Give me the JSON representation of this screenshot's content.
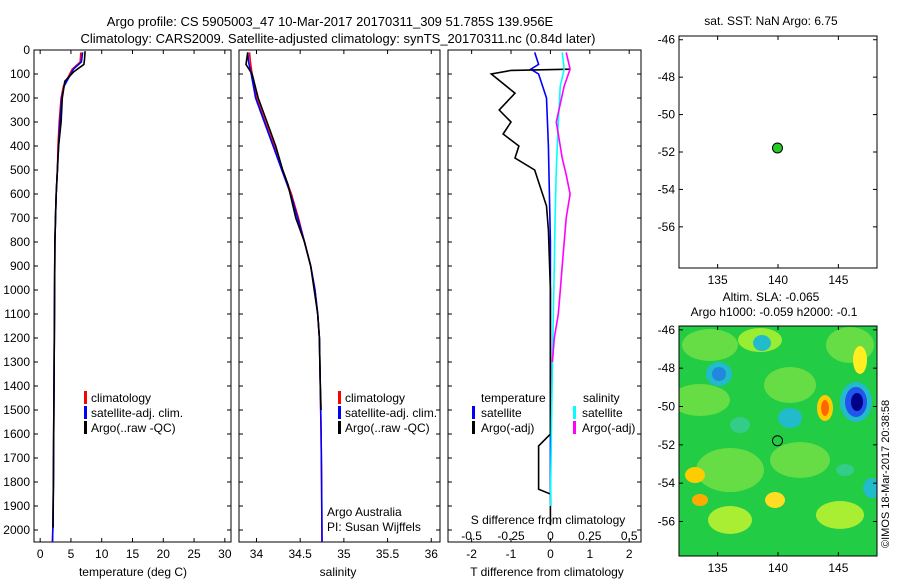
{
  "header": {
    "line1": "Argo profile: CS 5905003_47 10-Mar-2017 20170311_309 51.785S 139.956E",
    "line2": "Climatology: CARS2009. Satellite-adjusted climatology: synTS_20170311.nc (0.84d later)"
  },
  "colors": {
    "climatology": "#ff0000",
    "satellite": "#0000ff",
    "argo": "#000000",
    "salinity_satellite": "#00ffff",
    "salinity_argo": "#ff00ff",
    "marker_green": "#22cc22"
  },
  "footer": {
    "credit": "Argo Australia",
    "pi": "PI: Susan Wijffels",
    "stamp": "©IMOS 18-Mar-2017 20:38:58"
  },
  "chart_data": [
    {
      "type": "line",
      "xlabel": "temperature (deg C)",
      "ylabel": "",
      "xlim": [
        -1,
        31
      ],
      "ylim": [
        2050,
        0
      ],
      "xticks": [
        0,
        5,
        10,
        15,
        20,
        25,
        30
      ],
      "yticks": [
        0,
        100,
        200,
        300,
        400,
        500,
        600,
        700,
        800,
        900,
        1000,
        1100,
        1200,
        1300,
        1400,
        1500,
        1600,
        1700,
        1800,
        1900,
        2000
      ],
      "legend": {
        "placement": "lower-middle",
        "entries": [
          "climatology",
          "satellite-adj. clim.",
          "Argo(..raw -QC)"
        ]
      },
      "series": [
        {
          "name": "climatology",
          "color": "#ff0000",
          "x": [
            6.6,
            6.5,
            5.2,
            3.8,
            3.4,
            3.1,
            2.9,
            2.8,
            2.6,
            2.5,
            2.4,
            2.35,
            2.3,
            2.25,
            2.2,
            2.15,
            2.1,
            2.05,
            2.0
          ],
          "y": [
            10,
            50,
            80,
            150,
            200,
            300,
            400,
            500,
            600,
            700,
            800,
            1000,
            1200,
            1400,
            1600,
            1800,
            1900,
            2000,
            2050
          ]
        },
        {
          "name": "satellite-adj. clim.",
          "color": "#0000ff",
          "x": [
            6.9,
            6.7,
            5.4,
            3.9,
            3.5,
            3.2,
            3.0,
            2.8,
            2.6,
            2.5,
            2.4,
            2.35,
            2.3,
            2.25,
            2.2,
            2.15,
            2.1,
            2.05,
            2.0
          ],
          "y": [
            10,
            50,
            80,
            150,
            200,
            300,
            400,
            500,
            600,
            700,
            800,
            1000,
            1200,
            1400,
            1600,
            1800,
            1900,
            2000,
            2050
          ]
        },
        {
          "name": "Argo(..raw -QC)",
          "color": "#000000",
          "x": [
            7.3,
            7.2,
            7.1,
            5.5,
            4.0,
            3.6,
            3.4,
            3.0,
            2.8,
            2.6,
            2.5,
            2.4,
            2.35,
            2.3,
            2.25,
            2.2,
            2.15,
            2.1
          ],
          "y": [
            5,
            40,
            60,
            90,
            130,
            200,
            300,
            400,
            500,
            600,
            700,
            800,
            1000,
            1200,
            1400,
            1600,
            1800,
            1990
          ]
        }
      ]
    },
    {
      "type": "line",
      "xlabel": "salinity",
      "ylabel": "",
      "xlim": [
        33.8,
        36.1
      ],
      "ylim": [
        2050,
        0
      ],
      "xticks": [
        34,
        34.5,
        35,
        35.5,
        36
      ],
      "legend": {
        "placement": "lower-right",
        "entries": [
          "climatology",
          "satellite-adj. clim.",
          "Argo(..raw -QC)"
        ]
      },
      "series": [
        {
          "name": "climatology",
          "color": "#ff0000",
          "x": [
            33.92,
            33.93,
            33.95,
            34.0,
            34.1,
            34.2,
            34.3,
            34.4,
            34.48,
            34.55,
            34.62,
            34.67,
            34.7,
            34.72,
            34.73,
            34.74,
            34.745,
            34.75
          ],
          "y": [
            10,
            50,
            100,
            200,
            300,
            400,
            500,
            600,
            700,
            800,
            900,
            1000,
            1100,
            1200,
            1400,
            1600,
            1800,
            2050
          ]
        },
        {
          "name": "satellite-adj. clim.",
          "color": "#0000ff",
          "x": [
            33.9,
            33.91,
            33.94,
            33.99,
            34.09,
            34.19,
            34.29,
            34.39,
            34.47,
            34.55,
            34.62,
            34.67,
            34.7,
            34.72,
            34.73,
            34.74,
            34.745,
            34.75
          ],
          "y": [
            10,
            50,
            100,
            200,
            300,
            400,
            500,
            600,
            700,
            800,
            900,
            1000,
            1100,
            1200,
            1400,
            1600,
            1800,
            2050
          ]
        },
        {
          "name": "Argo(..raw -QC)",
          "color": "#000000",
          "x": [
            33.9,
            33.88,
            33.95,
            34.02,
            34.12,
            34.22,
            34.3,
            34.36,
            34.45,
            34.55,
            34.62,
            34.66,
            34.7,
            34.72,
            34.73,
            34.74
          ],
          "y": [
            10,
            60,
            100,
            200,
            300,
            400,
            500,
            560,
            700,
            800,
            900,
            1000,
            1100,
            1200,
            1400,
            1500
          ]
        }
      ]
    },
    {
      "type": "line",
      "xlabel": "T difference from climatology",
      "top_label": "S difference from climatology",
      "xlim": [
        -2.6,
        2.3
      ],
      "ylim": [
        2050,
        0
      ],
      "xticks": [
        -2,
        -1,
        0,
        1,
        2
      ],
      "top_ticks": [
        "-0.5",
        "-0.25",
        "0",
        "0.25",
        "0.5"
      ],
      "legend": {
        "placement": "lower-middle",
        "temperature_header": "temperature",
        "salinity_header": "salinity",
        "entries": [
          "satellite",
          "Argo(-adj)",
          "satellite",
          "Argo(-adj)"
        ]
      },
      "series": [
        {
          "name": "satellite",
          "color": "#0000ff",
          "x": [
            -0.4,
            -0.3,
            -0.5,
            -0.3,
            -0.1,
            -0.05,
            0,
            0
          ],
          "y": [
            10,
            60,
            80,
            100,
            200,
            400,
            800,
            1900
          ]
        },
        {
          "name": "Argo(-adj)",
          "color": "#000000",
          "x": [
            0.5,
            -1.0,
            -1.5,
            -0.9,
            -1.3,
            -1.0,
            -1.2,
            -0.8,
            -0.9,
            -0.4,
            -0.3,
            -0.1,
            -0.05,
            0,
            0,
            0,
            -0.3,
            -0.3,
            0,
            0
          ],
          "y": [
            80,
            85,
            100,
            180,
            250,
            300,
            350,
            400,
            450,
            500,
            550,
            650,
            750,
            1000,
            1200,
            1600,
            1650,
            1830,
            1850,
            1980
          ]
        },
        {
          "name": "satellite",
          "color": "#00ffff",
          "x": [
            0.3,
            0.35,
            0.25,
            0.2,
            0.15,
            0.12,
            0.1,
            0.05,
            0
          ],
          "y": [
            10,
            80,
            150,
            300,
            500,
            700,
            900,
            1300,
            1900
          ]
        },
        {
          "name": "Argo(-adj)",
          "color": "#ff00ff",
          "x": [
            0.4,
            0.5,
            0.35,
            0.15,
            0.3,
            0.4,
            0.5,
            0.4,
            0.35,
            0.3,
            0.25,
            0.2,
            0.1,
            0.05
          ],
          "y": [
            10,
            80,
            150,
            300,
            450,
            520,
            600,
            700,
            800,
            900,
            1000,
            1100,
            1200,
            1300
          ]
        }
      ]
    },
    {
      "type": "scatter",
      "title": "sat. SST: NaN Argo: 6.75",
      "xlim": [
        131.8,
        148.2
      ],
      "ylim": [
        -58.2,
        -45.8
      ],
      "xticks": [
        135,
        140,
        145
      ],
      "yticks": [
        -46,
        -48,
        -50,
        -52,
        -54,
        -56
      ],
      "points": [
        {
          "x": 139.956,
          "y": -51.785,
          "color": "#22cc22"
        }
      ]
    },
    {
      "type": "heatmap",
      "title_line1": "Altim. SLA: -0.065",
      "title_line2": "Argo h1000: -0.059 h2000: -0.1",
      "xlim": [
        131.8,
        148.2
      ],
      "ylim": [
        -57.8,
        -45.8
      ],
      "xticks": [
        135,
        140,
        145
      ],
      "yticks": [
        -46,
        -48,
        -50,
        -52,
        -54,
        -56
      ],
      "points": [
        {
          "x": 139.956,
          "y": -51.785
        }
      ]
    }
  ]
}
